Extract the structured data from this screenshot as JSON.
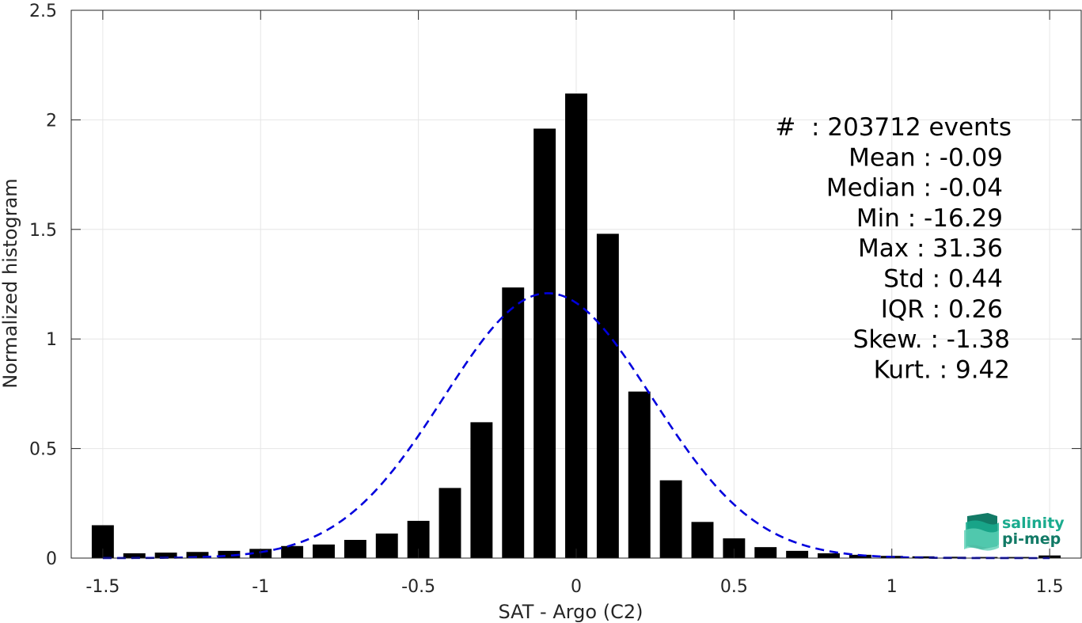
{
  "chart_data": {
    "type": "bar",
    "xlabel": "SAT - Argo (C2)",
    "ylabel": "Normalized histogram",
    "xlim": [
      -1.6,
      1.6
    ],
    "ylim": [
      0,
      2.5
    ],
    "grid": true,
    "xticks": [
      -1.5,
      -1,
      -0.5,
      0,
      0.5,
      1,
      1.5
    ],
    "xtick_labels": [
      "-1.5",
      "-1",
      "-0.5",
      "0",
      "0.5",
      "1",
      "1.5"
    ],
    "yticks": [
      0,
      0.5,
      1,
      1.5,
      2,
      2.5
    ],
    "ytick_labels": [
      "0",
      "0.5",
      "1",
      "1.5",
      "2",
      "2.5"
    ],
    "bar_width": 0.07,
    "bars": {
      "x": [
        -1.5,
        -1.4,
        -1.3,
        -1.2,
        -1.1,
        -1.0,
        -0.9,
        -0.8,
        -0.7,
        -0.6,
        -0.5,
        -0.4,
        -0.3,
        -0.2,
        -0.1,
        0.0,
        0.1,
        0.2,
        0.3,
        0.4,
        0.5,
        0.6,
        0.7,
        0.8,
        0.9,
        1.0,
        1.1,
        1.2,
        1.3,
        1.4,
        1.5
      ],
      "values": [
        0.15,
        0.022,
        0.025,
        0.028,
        0.033,
        0.042,
        0.055,
        0.062,
        0.083,
        0.112,
        0.17,
        0.32,
        0.62,
        1.235,
        1.96,
        2.12,
        1.48,
        0.76,
        0.355,
        0.165,
        0.09,
        0.05,
        0.033,
        0.022,
        0.015,
        0.01,
        0.008,
        0.006,
        0.005,
        0.005,
        0.012
      ],
      "color": "#000000"
    },
    "fit": {
      "style": "dashed",
      "color": "#0000dd",
      "mean": -0.09,
      "std": 0.33,
      "x_range": [
        -1.5,
        1.5
      ]
    }
  },
  "stats": [
    {
      "label": "#",
      "value": "  : 203712 events"
    },
    {
      "label": "Mean",
      "value": " : -0.09"
    },
    {
      "label": "Median",
      "value": " : -0.04"
    },
    {
      "label": "Min",
      "value": " : -16.29"
    },
    {
      "label": "Max",
      "value": " : 31.36"
    },
    {
      "label": "Std",
      "value": " : 0.44"
    },
    {
      "label": "IQR",
      "value": " : 0.26"
    },
    {
      "label": "Skew.",
      "value": " : -1.38"
    },
    {
      "label": "Kurt.",
      "value": " : 9.42"
    }
  ],
  "logo": {
    "line1": "salinity",
    "line2": "pi-mep",
    "color1": "#1aab8e",
    "color2": "#127a66"
  }
}
